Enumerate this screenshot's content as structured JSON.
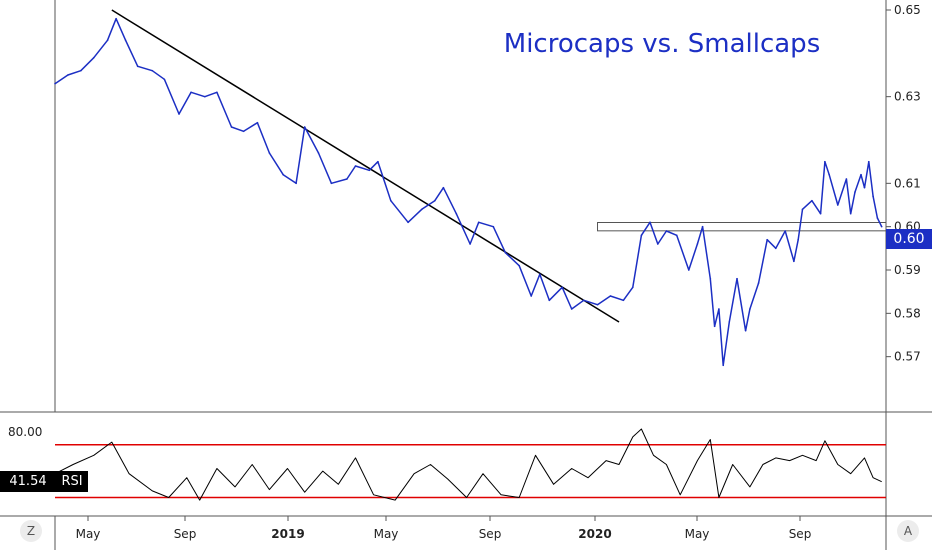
{
  "chart_data": [
    {
      "type": "line",
      "title": "Microcaps vs. Smallcaps",
      "xlabel": "",
      "ylabel": "",
      "ylim": [
        0.56,
        0.65
      ],
      "y_ticks": [
        "0.57",
        "0.58",
        "0.59",
        "0.60",
        "0.61",
        "0.63",
        "0.65"
      ],
      "x_ticks": [
        "May",
        "Sep",
        "2019",
        "May",
        "Sep",
        "2020",
        "May",
        "Sep"
      ],
      "x_ticks_bold": [
        false,
        false,
        true,
        false,
        false,
        true,
        false,
        false
      ],
      "x_range": [
        "2018-04-10",
        "2020-11-30"
      ],
      "line_color": "#1c2fc4",
      "current_value": "0.60",
      "series": [
        {
          "name": "",
          "points": [
            [
              "2018-04-10",
              0.633
            ],
            [
              "2018-04-25",
              0.635
            ],
            [
              "2018-05-10",
              0.636
            ],
            [
              "2018-05-25",
              0.639
            ],
            [
              "2018-06-10",
              0.643
            ],
            [
              "2018-06-20",
              0.648
            ],
            [
              "2018-07-01",
              0.643
            ],
            [
              "2018-07-15",
              0.637
            ],
            [
              "2018-08-01",
              0.636
            ],
            [
              "2018-08-15",
              0.634
            ],
            [
              "2018-09-01",
              0.626
            ],
            [
              "2018-09-15",
              0.631
            ],
            [
              "2018-10-01",
              0.63
            ],
            [
              "2018-10-15",
              0.631
            ],
            [
              "2018-11-01",
              0.623
            ],
            [
              "2018-11-15",
              0.622
            ],
            [
              "2018-12-01",
              0.624
            ],
            [
              "2018-12-15",
              0.617
            ],
            [
              "2018-12-31",
              0.612
            ],
            [
              "2019-01-15",
              0.61
            ],
            [
              "2019-01-25",
              0.623
            ],
            [
              "2019-02-10",
              0.617
            ],
            [
              "2019-02-25",
              0.61
            ],
            [
              "2019-03-15",
              0.611
            ],
            [
              "2019-03-25",
              0.614
            ],
            [
              "2019-04-10",
              0.613
            ],
            [
              "2019-04-20",
              0.615
            ],
            [
              "2019-05-05",
              0.606
            ],
            [
              "2019-05-25",
              0.601
            ],
            [
              "2019-06-10",
              0.604
            ],
            [
              "2019-06-25",
              0.606
            ],
            [
              "2019-07-05",
              0.609
            ],
            [
              "2019-07-20",
              0.603
            ],
            [
              "2019-08-05",
              0.596
            ],
            [
              "2019-08-15",
              0.601
            ],
            [
              "2019-09-01",
              0.6
            ],
            [
              "2019-09-15",
              0.594
            ],
            [
              "2019-10-01",
              0.591
            ],
            [
              "2019-10-15",
              0.584
            ],
            [
              "2019-10-25",
              0.589
            ],
            [
              "2019-11-05",
              0.583
            ],
            [
              "2019-11-20",
              0.586
            ],
            [
              "2019-12-01",
              0.581
            ],
            [
              "2019-12-15",
              0.583
            ],
            [
              "2019-12-31",
              0.582
            ],
            [
              "2020-01-15",
              0.584
            ],
            [
              "2020-01-30",
              0.583
            ],
            [
              "2020-02-10",
              0.586
            ],
            [
              "2020-02-20",
              0.598
            ],
            [
              "2020-03-01",
              0.601
            ],
            [
              "2020-03-10",
              0.596
            ],
            [
              "2020-03-20",
              0.599
            ],
            [
              "2020-04-01",
              0.598
            ],
            [
              "2020-04-15",
              0.59
            ],
            [
              "2020-04-25",
              0.596
            ],
            [
              "2020-05-01",
              0.6
            ],
            [
              "2020-05-10",
              0.588
            ],
            [
              "2020-05-15",
              0.577
            ],
            [
              "2020-05-20",
              0.581
            ],
            [
              "2020-05-25",
              0.568
            ],
            [
              "2020-06-01",
              0.578
            ],
            [
              "2020-06-10",
              0.588
            ],
            [
              "2020-06-20",
              0.576
            ],
            [
              "2020-06-25",
              0.581
            ],
            [
              "2020-07-05",
              0.587
            ],
            [
              "2020-07-15",
              0.597
            ],
            [
              "2020-07-25",
              0.595
            ],
            [
              "2020-08-05",
              0.599
            ],
            [
              "2020-08-15",
              0.592
            ],
            [
              "2020-08-20",
              0.597
            ],
            [
              "2020-08-25",
              0.604
            ],
            [
              "2020-09-05",
              0.606
            ],
            [
              "2020-09-15",
              0.603
            ],
            [
              "2020-09-20",
              0.615
            ],
            [
              "2020-09-25",
              0.612
            ],
            [
              "2020-10-05",
              0.605
            ],
            [
              "2020-10-15",
              0.611
            ],
            [
              "2020-10-20",
              0.603
            ],
            [
              "2020-10-25",
              0.608
            ],
            [
              "2020-11-01",
              0.612
            ],
            [
              "2020-11-05",
              0.609
            ],
            [
              "2020-11-10",
              0.615
            ],
            [
              "2020-11-15",
              0.607
            ],
            [
              "2020-11-20",
              0.602
            ],
            [
              "2020-11-25",
              0.6
            ]
          ]
        }
      ],
      "trendline": {
        "start": [
          "2018-06-15",
          0.65
        ],
        "end": [
          "2020-01-25",
          0.578
        ],
        "color": "#000000"
      },
      "resistance_band": {
        "start": "2019-12-31",
        "end": "2020-12-31",
        "low": 0.5995,
        "high": 0.6005
      }
    },
    {
      "type": "line",
      "title": "",
      "series_name": "RSI",
      "current_value": "41.54",
      "y_ticks": [
        "80.00"
      ],
      "ylim": [
        22,
        85
      ],
      "overbought": 70,
      "oversold": 30,
      "band_color": "#e00000",
      "line_color": "#000000",
      "points": [
        [
          "2018-04-10",
          48
        ],
        [
          "2018-05-01",
          55
        ],
        [
          "2018-05-25",
          62
        ],
        [
          "2018-06-15",
          72
        ],
        [
          "2018-07-05",
          48
        ],
        [
          "2018-08-01",
          35
        ],
        [
          "2018-08-20",
          30
        ],
        [
          "2018-09-10",
          45
        ],
        [
          "2018-09-25",
          28
        ],
        [
          "2018-10-15",
          52
        ],
        [
          "2018-11-05",
          38
        ],
        [
          "2018-11-25",
          55
        ],
        [
          "2018-12-15",
          36
        ],
        [
          "2019-01-05",
          52
        ],
        [
          "2019-01-25",
          34
        ],
        [
          "2019-02-15",
          50
        ],
        [
          "2019-03-05",
          40
        ],
        [
          "2019-03-25",
          60
        ],
        [
          "2019-04-15",
          32
        ],
        [
          "2019-05-10",
          28
        ],
        [
          "2019-06-01",
          48
        ],
        [
          "2019-06-20",
          55
        ],
        [
          "2019-07-10",
          44
        ],
        [
          "2019-08-01",
          30
        ],
        [
          "2019-08-20",
          48
        ],
        [
          "2019-09-10",
          32
        ],
        [
          "2019-10-01",
          30
        ],
        [
          "2019-10-20",
          62
        ],
        [
          "2019-11-10",
          40
        ],
        [
          "2019-12-01",
          52
        ],
        [
          "2019-12-20",
          45
        ],
        [
          "2020-01-10",
          58
        ],
        [
          "2020-01-25",
          55
        ],
        [
          "2020-02-10",
          76
        ],
        [
          "2020-02-20",
          82
        ],
        [
          "2020-03-05",
          62
        ],
        [
          "2020-03-20",
          55
        ],
        [
          "2020-04-05",
          32
        ],
        [
          "2020-04-25",
          58
        ],
        [
          "2020-05-10",
          74
        ],
        [
          "2020-05-20",
          30
        ],
        [
          "2020-06-05",
          55
        ],
        [
          "2020-06-25",
          38
        ],
        [
          "2020-07-10",
          55
        ],
        [
          "2020-07-25",
          60
        ],
        [
          "2020-08-10",
          58
        ],
        [
          "2020-08-25",
          62
        ],
        [
          "2020-09-10",
          58
        ],
        [
          "2020-09-20",
          73
        ],
        [
          "2020-10-05",
          55
        ],
        [
          "2020-10-20",
          48
        ],
        [
          "2020-11-05",
          60
        ],
        [
          "2020-11-15",
          45
        ],
        [
          "2020-11-25",
          42
        ]
      ]
    }
  ],
  "ui": {
    "left_button": "Z",
    "right_button": "A"
  }
}
